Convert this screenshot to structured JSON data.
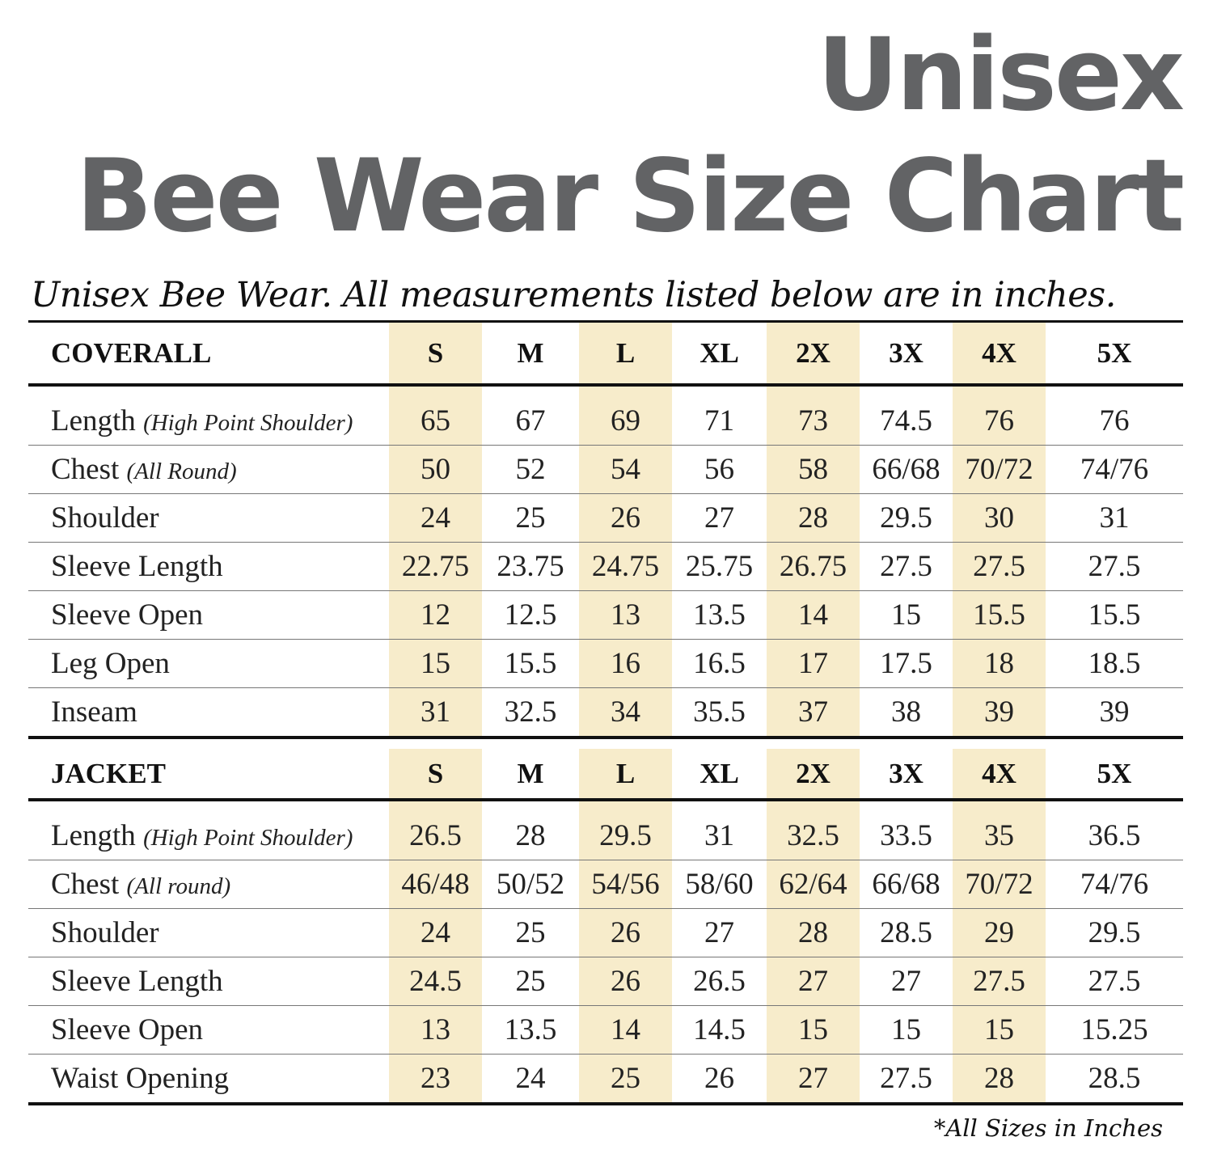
{
  "title_line1": "Unisex",
  "title_line2": "Bee Wear Size Chart",
  "subtitle": "Unisex Bee Wear. All measurements listed below are in inches.",
  "sizes": [
    "S",
    "M",
    "L",
    "XL",
    "2X",
    "3X",
    "4X",
    "5X"
  ],
  "coverall": {
    "heading": "COVERALL",
    "rows": [
      {
        "label": "Length",
        "note": "(High Point Shoulder)",
        "values": [
          "65",
          "67",
          "69",
          "71",
          "73",
          "74.5",
          "76",
          "76"
        ]
      },
      {
        "label": "Chest",
        "note": "(All Round)",
        "values": [
          "50",
          "52",
          "54",
          "56",
          "58",
          "66/68",
          "70/72",
          "74/76"
        ]
      },
      {
        "label": "Shoulder",
        "note": "",
        "values": [
          "24",
          "25",
          "26",
          "27",
          "28",
          "29.5",
          "30",
          "31"
        ]
      },
      {
        "label": "Sleeve Length",
        "note": "",
        "values": [
          "22.75",
          "23.75",
          "24.75",
          "25.75",
          "26.75",
          "27.5",
          "27.5",
          "27.5"
        ]
      },
      {
        "label": "Sleeve Open",
        "note": "",
        "values": [
          "12",
          "12.5",
          "13",
          "13.5",
          "14",
          "15",
          "15.5",
          "15.5"
        ]
      },
      {
        "label": "Leg Open",
        "note": "",
        "values": [
          "15",
          "15.5",
          "16",
          "16.5",
          "17",
          "17.5",
          "18",
          "18.5"
        ]
      },
      {
        "label": "Inseam",
        "note": "",
        "values": [
          "31",
          "32.5",
          "34",
          "35.5",
          "37",
          "38",
          "39",
          "39"
        ]
      }
    ]
  },
  "jacket": {
    "heading": "JACKET",
    "rows": [
      {
        "label": "Length",
        "note": "(High Point Shoulder)",
        "values": [
          "26.5",
          "28",
          "29.5",
          "31",
          "32.5",
          "33.5",
          "35",
          "36.5"
        ]
      },
      {
        "label": "Chest",
        "note": "(All round)",
        "values": [
          "46/48",
          "50/52",
          "54/56",
          "58/60",
          "62/64",
          "66/68",
          "70/72",
          "74/76"
        ]
      },
      {
        "label": "Shoulder",
        "note": "",
        "values": [
          "24",
          "25",
          "26",
          "27",
          "28",
          "28.5",
          "29",
          "29.5"
        ]
      },
      {
        "label": "Sleeve Length",
        "note": "",
        "values": [
          "24.5",
          "25",
          "26",
          "26.5",
          "27",
          "27",
          "27.5",
          "27.5"
        ]
      },
      {
        "label": "Sleeve Open",
        "note": "",
        "values": [
          "13",
          "13.5",
          "14",
          "14.5",
          "15",
          "15",
          "15",
          "15.25"
        ]
      },
      {
        "label": "Waist Opening",
        "note": "",
        "values": [
          "23",
          "24",
          "25",
          "26",
          "27",
          "27.5",
          "28",
          "28.5"
        ]
      }
    ]
  },
  "footnote": "*All Sizes in Inches",
  "highlight_color": "#f7eccb",
  "title_color": "#626365"
}
